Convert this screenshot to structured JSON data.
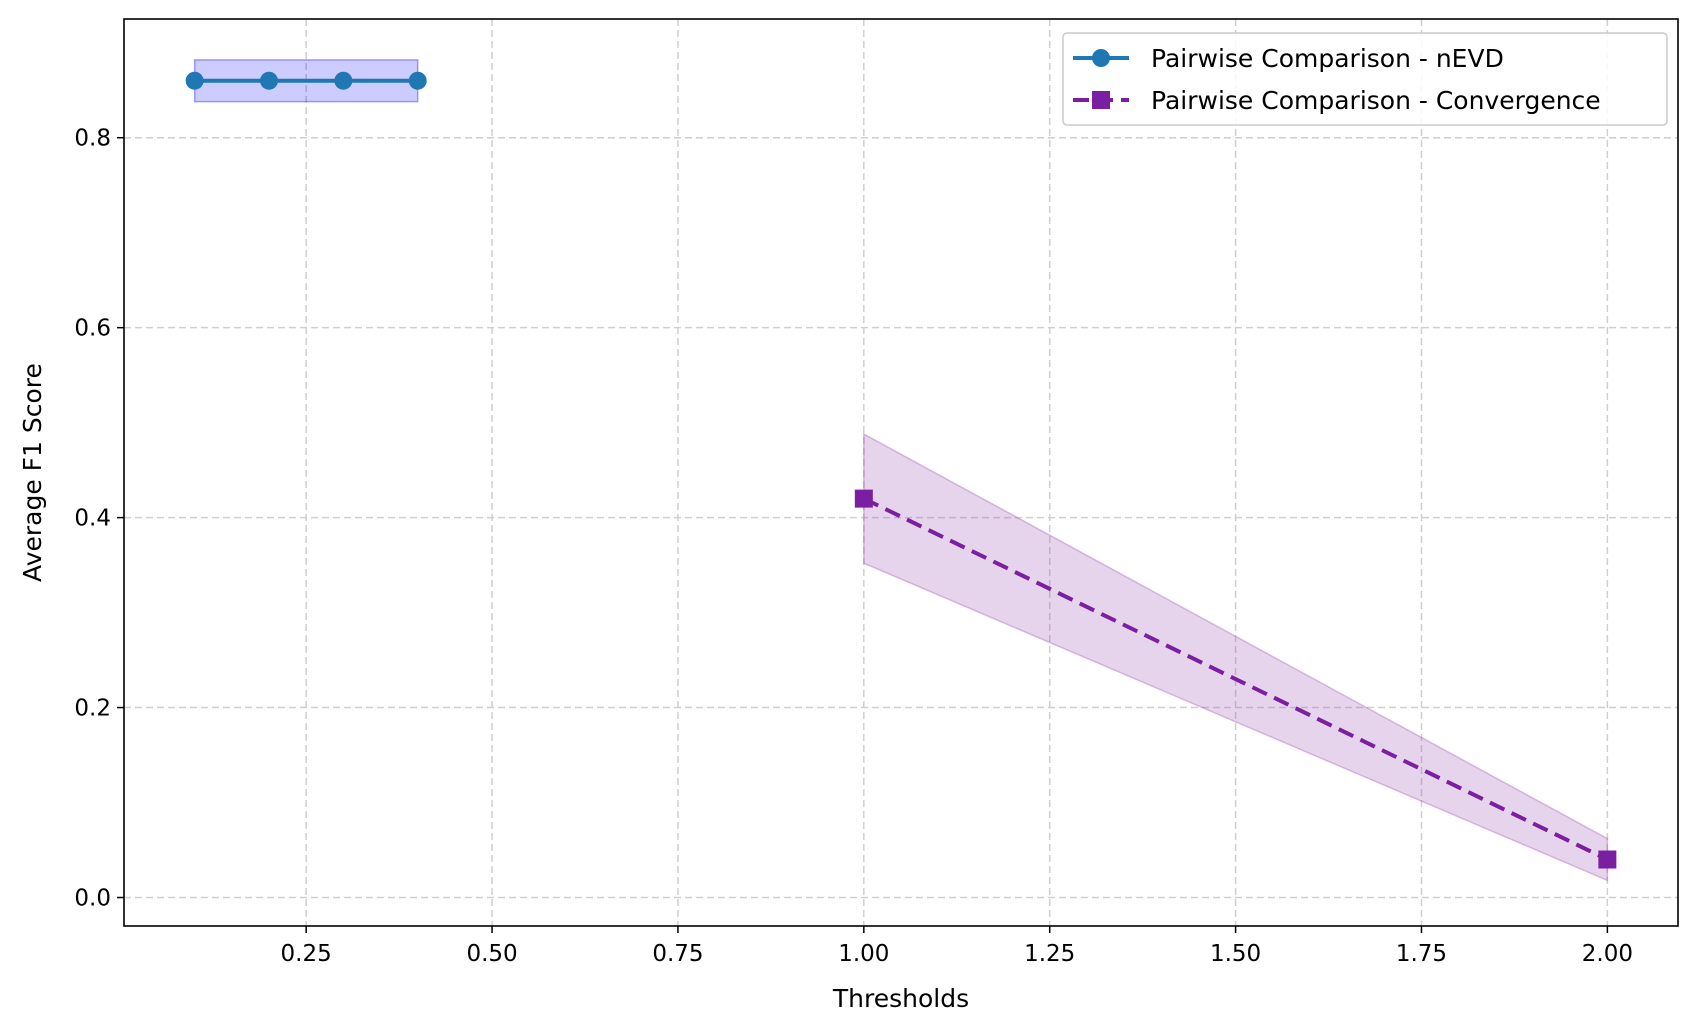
{
  "chart_data": {
    "type": "line",
    "title": "",
    "xlabel": "Thresholds",
    "ylabel": "Average F1 Score",
    "xlim": [
      0.005,
      2.095
    ],
    "ylim": [
      -0.03,
      0.925
    ],
    "xticks": [
      0.25,
      0.5,
      0.75,
      1.0,
      1.25,
      1.5,
      1.75,
      2.0
    ],
    "xtick_labels": [
      "0.25",
      "0.50",
      "0.75",
      "1.00",
      "1.25",
      "1.50",
      "1.75",
      "2.00"
    ],
    "yticks": [
      0.0,
      0.2,
      0.4,
      0.6,
      0.8
    ],
    "ytick_labels": [
      "0.0",
      "0.2",
      "0.4",
      "0.6",
      "0.8"
    ],
    "grid": true,
    "legend_position": "top-right",
    "series": [
      {
        "name": "Pairwise Comparison - nEVD",
        "color": "#1f77b4",
        "band_color": "#0000ff",
        "line_style": "solid",
        "marker": "circle",
        "x": [
          0.1,
          0.2,
          0.3,
          0.4
        ],
        "y": [
          0.86,
          0.86,
          0.86,
          0.86
        ],
        "y_lower": [
          0.838,
          0.838,
          0.838,
          0.838
        ],
        "y_upper": [
          0.882,
          0.882,
          0.882,
          0.882
        ]
      },
      {
        "name": "Pairwise Comparison - Convergence",
        "color": "#7b1fa2",
        "band_color": "#9c4fb5",
        "line_style": "dashed",
        "marker": "square",
        "x": [
          1.0,
          2.0
        ],
        "y": [
          0.42,
          0.04
        ],
        "y_lower": [
          0.352,
          0.018
        ],
        "y_upper": [
          0.488,
          0.062
        ]
      }
    ]
  }
}
